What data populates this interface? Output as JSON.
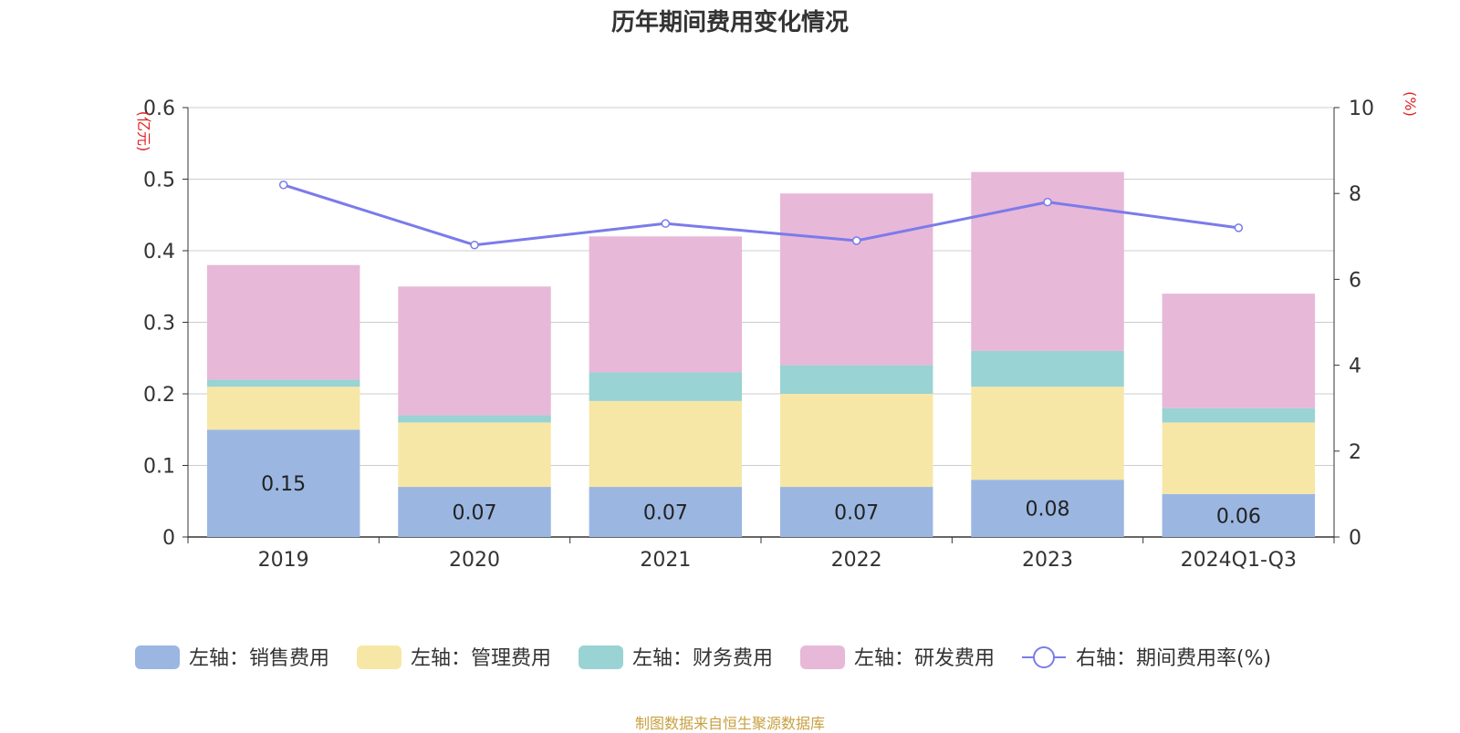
{
  "chart_data": {
    "type": "bar",
    "title": "历年期间费用变化情况",
    "categories": [
      "2019",
      "2020",
      "2021",
      "2022",
      "2023",
      "2024Q1-Q3"
    ],
    "left_axis": {
      "unit": "(亿元)",
      "range": [
        0,
        0.6
      ],
      "ticks": [
        "0",
        "0.1",
        "0.2",
        "0.3",
        "0.4",
        "0.5",
        "0.6"
      ]
    },
    "right_axis": {
      "unit": "(%)",
      "range": [
        0,
        10
      ],
      "ticks": [
        "0",
        "2",
        "4",
        "6",
        "8",
        "10"
      ]
    },
    "grid": true,
    "legend_position": "bottom",
    "series": [
      {
        "name": "左轴：销售费用",
        "type": "bar",
        "stack": "left",
        "color": "#9bb7e1",
        "values": [
          0.15,
          0.07,
          0.07,
          0.07,
          0.08,
          0.06
        ],
        "labels": [
          "0.15",
          "0.07",
          "0.07",
          "0.07",
          "0.08",
          "0.06"
        ]
      },
      {
        "name": "左轴：管理费用",
        "type": "bar",
        "stack": "left",
        "color": "#f7e7a6",
        "values": [
          0.06,
          0.09,
          0.12,
          0.13,
          0.13,
          0.1
        ]
      },
      {
        "name": "左轴：财务费用",
        "type": "bar",
        "stack": "left",
        "color": "#99d3d3",
        "values": [
          0.01,
          0.01,
          0.04,
          0.04,
          0.05,
          0.02
        ]
      },
      {
        "name": "左轴：研发费用",
        "type": "bar",
        "stack": "left",
        "color": "#e7b8d8",
        "values": [
          0.16,
          0.18,
          0.19,
          0.24,
          0.25,
          0.16
        ]
      },
      {
        "name": "右轴：期间费用率(%)",
        "type": "line",
        "axis": "right",
        "color": "#7b7bea",
        "values": [
          8.2,
          6.8,
          7.3,
          6.9,
          7.8,
          7.2
        ]
      }
    ]
  },
  "source": "制图数据来自恒生聚源数据库"
}
